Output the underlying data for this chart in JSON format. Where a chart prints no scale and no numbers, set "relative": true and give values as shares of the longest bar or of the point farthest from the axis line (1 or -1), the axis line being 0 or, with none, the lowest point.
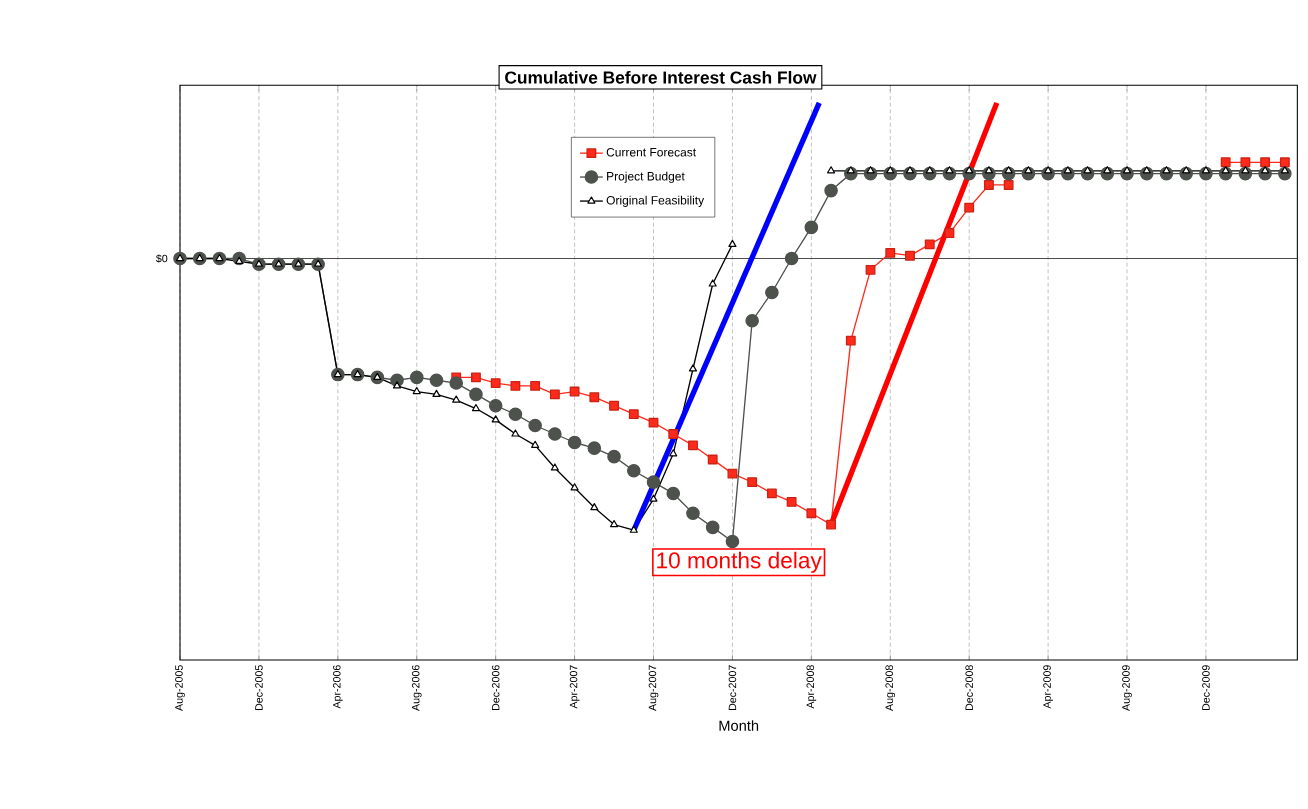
{
  "chart_data": {
    "type": "line",
    "title": "Cumulative Before Interest Cash Flow",
    "xlabel": "Month",
    "relative": true,
    "x": [
      "2005-08",
      "2005-09",
      "2005-10",
      "2005-11",
      "2005-12",
      "2006-01",
      "2006-02",
      "2006-03",
      "2006-04",
      "2006-05",
      "2006-06",
      "2006-07",
      "2006-08",
      "2006-09",
      "2006-10",
      "2006-11",
      "2006-12",
      "2007-01",
      "2007-02",
      "2007-03",
      "2007-04",
      "2007-05",
      "2007-06",
      "2007-07",
      "2007-08",
      "2007-09",
      "2007-10",
      "2007-11",
      "2007-12",
      "2008-01",
      "2008-02",
      "2008-03",
      "2008-04",
      "2008-05",
      "2008-06",
      "2008-07",
      "2008-08",
      "2008-09",
      "2008-10",
      "2008-11",
      "2008-12",
      "2009-01",
      "2009-02",
      "2009-03",
      "2009-04",
      "2009-05",
      "2009-06",
      "2009-07",
      "2009-08",
      "2009-09",
      "2009-10",
      "2009-11",
      "2009-12",
      "2010-01",
      "2010-02",
      "2010-03",
      "2010-04"
    ],
    "xlim": [
      "2005-08",
      "2010-04-20"
    ],
    "xticks": [
      {
        "value": "2005-08",
        "label": "Aug-2005"
      },
      {
        "value": "2005-12",
        "label": "Dec-2005"
      },
      {
        "value": "2006-04",
        "label": "Apr-2006"
      },
      {
        "value": "2006-08",
        "label": "Aug-2006"
      },
      {
        "value": "2006-12",
        "label": "Dec-2006"
      },
      {
        "value": "2007-04",
        "label": "Apr-2007"
      },
      {
        "value": "2007-08",
        "label": "Aug-2007"
      },
      {
        "value": "2007-12",
        "label": "Dec-2007"
      },
      {
        "value": "2008-04",
        "label": "Apr-2008"
      },
      {
        "value": "2008-08",
        "label": "Aug-2008"
      },
      {
        "value": "2008-12",
        "label": "Dec-2008"
      },
      {
        "value": "2009-04",
        "label": "Apr-2009"
      },
      {
        "value": "2009-08",
        "label": "Aug-2009"
      },
      {
        "value": "2009-12",
        "label": "Dec-2009"
      }
    ],
    "grid": "x",
    "legend": "top",
    "ref_lines": [
      {
        "axis": "y",
        "value": 0,
        "label": "$0"
      }
    ],
    "annotations": [
      "10 months delay"
    ],
    "series": [
      {
        "name": "Current Forecast",
        "color": "#ff2a1a",
        "marker": "square",
        "values": [
          null,
          null,
          null,
          null,
          null,
          null,
          null,
          null,
          null,
          null,
          null,
          null,
          null,
          null,
          -0.42,
          -0.42,
          -0.44,
          -0.45,
          -0.45,
          -0.48,
          -0.47,
          -0.49,
          -0.52,
          -0.55,
          -0.58,
          -0.62,
          -0.66,
          -0.71,
          -0.76,
          -0.79,
          -0.83,
          -0.86,
          -0.9,
          -0.94,
          -0.29,
          -0.04,
          0.02,
          0.01,
          0.05,
          0.09,
          0.18,
          0.26,
          0.26,
          null,
          null,
          null,
          null,
          null,
          null,
          null,
          null,
          null,
          null,
          0.34,
          0.34,
          0.34,
          0.34
        ]
      },
      {
        "name": "Project Budget",
        "color": "#4d524d",
        "marker": "circle",
        "values": [
          0,
          0,
          0,
          0,
          -0.02,
          -0.02,
          -0.02,
          -0.02,
          -0.41,
          -0.41,
          -0.42,
          -0.43,
          -0.42,
          -0.43,
          -0.44,
          -0.48,
          -0.52,
          -0.55,
          -0.59,
          -0.62,
          -0.65,
          -0.67,
          -0.7,
          -0.75,
          -0.79,
          -0.83,
          -0.9,
          -0.95,
          -1.0,
          -0.22,
          -0.12,
          0,
          0.11,
          0.24,
          0.3,
          0.3,
          0.3,
          0.3,
          0.3,
          0.3,
          0.3,
          0.3,
          0.3,
          0.3,
          0.3,
          0.3,
          0.3,
          0.3,
          0.3,
          0.3,
          0.3,
          0.3,
          0.3,
          0.3,
          0.3,
          0.3,
          0.3
        ]
      },
      {
        "name": "Original Feasibility",
        "color": "#000000",
        "marker": "triangle",
        "values": [
          0,
          0,
          0,
          -0.01,
          -0.02,
          -0.02,
          -0.02,
          -0.02,
          -0.41,
          -0.41,
          -0.42,
          -0.45,
          -0.47,
          -0.48,
          -0.5,
          -0.53,
          -0.57,
          -0.62,
          -0.66,
          -0.74,
          -0.81,
          -0.88,
          -0.94,
          -0.96,
          -0.85,
          -0.69,
          -0.39,
          -0.09,
          0.05,
          null,
          null,
          null,
          null,
          0.31,
          0.31,
          0.31,
          0.31,
          0.31,
          0.31,
          0.31,
          0.31,
          0.31,
          0.31,
          0.31,
          0.31,
          0.31,
          0.31,
          0.31,
          0.31,
          0.31,
          0.31,
          0.31,
          0.31,
          0.31,
          0.31,
          0.31,
          0.31
        ]
      },
      {
        "type": "line",
        "color": "#0000ff",
        "marker": "none",
        "x": [
          "2007-07",
          "2008-04-13"
        ],
        "values": [
          -0.96,
          0.55
        ]
      },
      {
        "type": "line",
        "color": "#ff0000",
        "marker": "none",
        "x": [
          "2008-05",
          "2009-01-13"
        ],
        "values": [
          -0.94,
          0.55
        ]
      }
    ]
  }
}
